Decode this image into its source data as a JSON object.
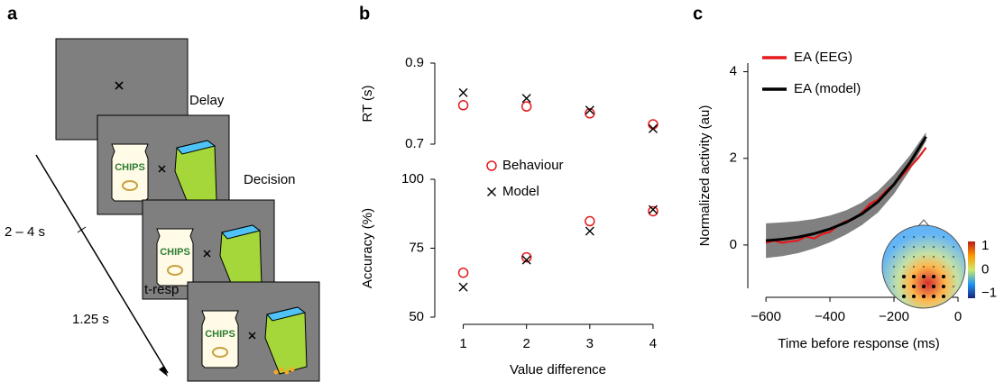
{
  "panel_labels": [
    "a",
    "b",
    "c"
  ],
  "task_diagram": {
    "stages": [
      "Delay",
      "Decision",
      "t-resp"
    ],
    "durations": [
      "2 – 4 s",
      "1.25 s"
    ],
    "product_label": "CHIPS"
  },
  "chart_data": [
    {
      "type": "scatter",
      "ylabel": "RT (s)",
      "xlim": [
        0.55,
        4.3
      ],
      "ylim": [
        0.7,
        0.9
      ],
      "yticks": [
        0.7,
        0.9
      ],
      "x": [
        1,
        2,
        3,
        4
      ],
      "series": [
        {
          "marker": "circle",
          "color": "#e41a1c",
          "values": [
            0.796,
            0.793,
            0.776,
            0.749
          ]
        },
        {
          "marker": "x",
          "color": "#000000",
          "values": [
            0.827,
            0.813,
            0.784,
            0.738
          ]
        }
      ]
    },
    {
      "type": "scatter",
      "ylabel": "Accuracy (%)",
      "xlabel": "Value  difference",
      "xlim": [
        0.55,
        4.3
      ],
      "ylim": [
        50,
        100
      ],
      "yticks": [
        50,
        75,
        100
      ],
      "xticks": [
        1,
        2,
        3,
        4
      ],
      "x": [
        1,
        2,
        3,
        4
      ],
      "legend": "upper left",
      "series": [
        {
          "name": "Behaviour",
          "marker": "circle",
          "color": "#e41a1c",
          "values": [
            66.1,
            71.7,
            84.8,
            88.4
          ]
        },
        {
          "name": "Model",
          "marker": "x",
          "color": "#000000",
          "values": [
            60.9,
            70.7,
            81.2,
            89.0
          ]
        }
      ]
    },
    {
      "type": "line",
      "xlabel": "Time before response (ms)",
      "ylabel": "Normalized activity (au)",
      "xlim": [
        -620,
        0
      ],
      "ylim": [
        -1,
        4.2
      ],
      "xticks": [
        {
          "value": -600,
          "label": "−600"
        },
        {
          "value": -400,
          "label": "−400"
        },
        {
          "value": -200,
          "label": "−200"
        },
        0
      ],
      "yticks": [
        0,
        2,
        4
      ],
      "legend": "upper left",
      "series": [
        {
          "name": "EA (EEG)",
          "color": "#e41a1c",
          "x": [
            -600,
            -575,
            -550,
            -525,
            -500,
            -475,
            -450,
            -425,
            -400,
            -375,
            -350,
            -325,
            -300,
            -275,
            -250,
            -225,
            -200,
            -175,
            -150,
            -125,
            -100
          ],
          "values": [
            0.05,
            0.1,
            0.05,
            0.08,
            0.1,
            0.2,
            0.15,
            0.25,
            0.3,
            0.45,
            0.55,
            0.6,
            0.75,
            0.95,
            1.05,
            1.25,
            1.4,
            1.6,
            1.8,
            2.0,
            2.25
          ]
        },
        {
          "name": "EA (model)",
          "color": "#000000",
          "x": [
            -600,
            -550,
            -500,
            -450,
            -400,
            -350,
            -300,
            -250,
            -200,
            -150,
            -100
          ],
          "values": [
            0.1,
            0.13,
            0.18,
            0.26,
            0.37,
            0.52,
            0.72,
            1.0,
            1.4,
            1.9,
            2.5
          ],
          "band_lower": [
            -0.3,
            -0.26,
            -0.19,
            -0.08,
            0.06,
            0.24,
            0.46,
            0.75,
            1.18,
            1.73,
            2.4
          ],
          "band_upper": [
            0.5,
            0.52,
            0.55,
            0.6,
            0.68,
            0.8,
            0.98,
            1.25,
            1.62,
            2.07,
            2.6
          ],
          "band_color": "#808080"
        }
      ],
      "colorbar_lim": [
        -1.2,
        1.2
      ],
      "colorbar_ticks": [
        1,
        0,
        {
          "value": -1,
          "label": "−1"
        }
      ]
    }
  ]
}
